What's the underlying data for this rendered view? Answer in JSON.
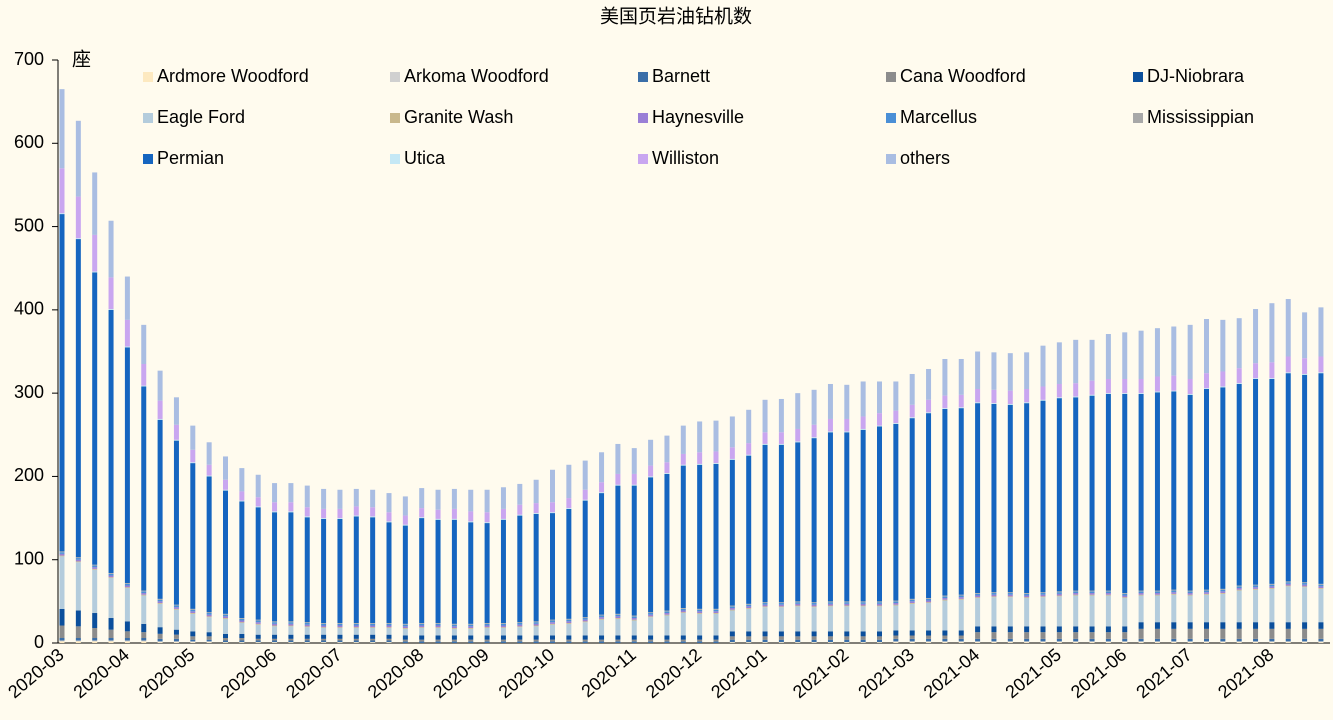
{
  "chart_data": {
    "type": "bar",
    "stacked": true,
    "title": "美国页岩油钻机数",
    "y_label": "座",
    "ylim": [
      0,
      700
    ],
    "yticks": [
      0,
      100,
      200,
      300,
      400,
      500,
      600,
      700
    ],
    "grid": false,
    "legend": "top",
    "categories": [
      "2020-03",
      null,
      null,
      null,
      "2020-04",
      null,
      null,
      null,
      "2020-05",
      null,
      null,
      null,
      null,
      "2020-06",
      null,
      null,
      null,
      "2020-07",
      null,
      null,
      null,
      null,
      "2020-08",
      null,
      null,
      null,
      "2020-09",
      null,
      null,
      null,
      "2020-10",
      null,
      null,
      null,
      null,
      "2020-11",
      null,
      null,
      null,
      "2020-12",
      null,
      null,
      null,
      "2021-01",
      null,
      null,
      null,
      null,
      "2021-02",
      null,
      null,
      null,
      "2021-03",
      null,
      null,
      null,
      "2021-04",
      null,
      null,
      null,
      null,
      "2021-05",
      null,
      null,
      null,
      "2021-06",
      null,
      null,
      null,
      "2021-07",
      null,
      null,
      null,
      null,
      "2021-08",
      null,
      null,
      null
    ],
    "series": [
      {
        "name": "Ardmore Woodford",
        "color": "#fde9c0",
        "values": [
          2,
          2,
          2,
          2,
          2,
          2,
          1,
          1,
          1,
          1,
          1,
          1,
          1,
          1,
          1,
          1,
          1,
          1,
          1,
          1,
          1,
          0,
          0,
          0,
          0,
          0,
          0,
          0,
          0,
          0,
          0,
          0,
          0,
          0,
          0,
          0,
          0,
          0,
          0,
          0,
          0,
          1,
          1,
          1,
          1,
          1,
          1,
          1,
          1,
          1,
          1,
          1,
          1,
          1,
          1,
          1,
          1,
          1,
          1,
          1,
          1,
          1,
          1,
          1,
          1,
          1,
          1,
          1,
          1,
          1,
          1,
          1,
          1,
          1,
          1,
          1,
          1,
          1
        ]
      },
      {
        "name": "Arkoma Woodford",
        "color": "#d0d0d0",
        "values": [
          1,
          1,
          1,
          1,
          1,
          1,
          1,
          1,
          1,
          1,
          0,
          0,
          0,
          0,
          0,
          0,
          0,
          0,
          0,
          0,
          0,
          0,
          0,
          0,
          0,
          0,
          0,
          0,
          0,
          0,
          0,
          0,
          0,
          0,
          0,
          0,
          0,
          0,
          0,
          0,
          0,
          0,
          0,
          0,
          0,
          0,
          0,
          0,
          0,
          0,
          0,
          1,
          1,
          1,
          1,
          1,
          1,
          1,
          1,
          1,
          1,
          1,
          1,
          1,
          1,
          1,
          1,
          1,
          1,
          1,
          1,
          1,
          1,
          1,
          1,
          1,
          1,
          1
        ]
      },
      {
        "name": "Barnett",
        "color": "#3a6ea8",
        "values": [
          3,
          3,
          3,
          3,
          3,
          3,
          3,
          3,
          2,
          2,
          2,
          2,
          2,
          2,
          2,
          2,
          2,
          2,
          2,
          2,
          2,
          2,
          2,
          2,
          2,
          2,
          2,
          2,
          2,
          2,
          2,
          2,
          2,
          2,
          2,
          2,
          2,
          2,
          2,
          2,
          2,
          3,
          3,
          3,
          3,
          3,
          3,
          3,
          3,
          3,
          3,
          3,
          3,
          3,
          3,
          3,
          3,
          3,
          3,
          3,
          3,
          3,
          3,
          3,
          3,
          3,
          3,
          3,
          3,
          3,
          3,
          3,
          3,
          3,
          3,
          3,
          3,
          3
        ]
      },
      {
        "name": "Cana Woodford",
        "color": "#8c8c8c",
        "values": [
          15,
          14,
          12,
          10,
          8,
          7,
          6,
          5,
          4,
          4,
          3,
          3,
          2,
          2,
          2,
          2,
          2,
          2,
          2,
          2,
          2,
          2,
          2,
          2,
          2,
          2,
          2,
          2,
          2,
          2,
          2,
          2,
          2,
          2,
          2,
          2,
          2,
          2,
          2,
          2,
          2,
          4,
          4,
          4,
          4,
          4,
          4,
          4,
          4,
          4,
          4,
          4,
          4,
          4,
          4,
          4,
          8,
          8,
          8,
          8,
          8,
          8,
          8,
          8,
          8,
          8,
          12,
          12,
          12,
          12,
          12,
          12,
          12,
          12,
          12,
          12,
          12,
          12
        ]
      },
      {
        "name": "DJ-Niobrara",
        "color": "#0b4f9c",
        "values": [
          20,
          19,
          18,
          14,
          12,
          10,
          8,
          6,
          6,
          5,
          5,
          5,
          5,
          5,
          5,
          5,
          5,
          5,
          5,
          5,
          5,
          5,
          5,
          5,
          5,
          5,
          5,
          5,
          5,
          5,
          5,
          5,
          5,
          5,
          5,
          5,
          5,
          5,
          5,
          5,
          5,
          6,
          6,
          6,
          6,
          6,
          6,
          6,
          6,
          6,
          6,
          6,
          6,
          6,
          6,
          6,
          7,
          7,
          7,
          7,
          7,
          7,
          7,
          7,
          7,
          7,
          8,
          8,
          8,
          8,
          8,
          8,
          8,
          8,
          8,
          8,
          8,
          8
        ]
      },
      {
        "name": "Eagle Ford",
        "color": "#b4ccdc",
        "values": [
          63,
          58,
          52,
          48,
          40,
          34,
          28,
          24,
          21,
          18,
          18,
          13,
          12,
          10,
          10,
          9,
          8,
          8,
          8,
          8,
          8,
          8,
          9,
          9,
          8,
          8,
          9,
          9,
          10,
          11,
          13,
          14,
          16,
          19,
          20,
          18,
          22,
          24,
          27,
          26,
          26,
          25,
          27,
          29,
          29,
          30,
          29,
          30,
          30,
          30,
          30,
          30,
          32,
          33,
          36,
          37,
          34,
          35,
          35,
          34,
          35,
          36,
          37,
          37,
          37,
          34,
          32,
          32,
          33,
          32,
          33,
          34,
          38,
          39,
          40,
          43,
          42,
          40
        ]
      },
      {
        "name": "Granite Wash",
        "color": "#c9b88c",
        "values": [
          1,
          1,
          1,
          1,
          1,
          1,
          1,
          1,
          1,
          1,
          1,
          1,
          1,
          1,
          1,
          1,
          1,
          1,
          1,
          1,
          1,
          1,
          1,
          1,
          1,
          1,
          1,
          1,
          1,
          1,
          1,
          1,
          1,
          1,
          1,
          1,
          1,
          1,
          1,
          1,
          1,
          1,
          1,
          1,
          1,
          1,
          1,
          1,
          1,
          1,
          1,
          1,
          1,
          1,
          1,
          1,
          1,
          1,
          1,
          1,
          1,
          1,
          1,
          1,
          1,
          1,
          1,
          1,
          1,
          1,
          1,
          1,
          1,
          1,
          1,
          1,
          1,
          1
        ]
      },
      {
        "name": "Haynesville",
        "color": "#9a7fd6",
        "values": [
          2,
          2,
          2,
          2,
          2,
          2,
          2,
          2,
          2,
          2,
          2,
          2,
          2,
          2,
          2,
          2,
          2,
          2,
          2,
          2,
          2,
          2,
          2,
          2,
          2,
          2,
          2,
          2,
          2,
          2,
          2,
          2,
          2,
          2,
          2,
          2,
          2,
          2,
          2,
          2,
          2,
          2,
          2,
          2,
          2,
          2,
          2,
          2,
          2,
          2,
          2,
          2,
          2,
          2,
          2,
          2,
          2,
          2,
          2,
          2,
          2,
          2,
          2,
          2,
          2,
          2,
          2,
          2,
          2,
          2,
          2,
          2,
          2,
          2,
          2,
          2,
          2,
          2
        ]
      },
      {
        "name": "Marcellus",
        "color": "#4a8fd6",
        "values": [
          2,
          2,
          2,
          2,
          2,
          2,
          2,
          2,
          2,
          2,
          2,
          2,
          2,
          2,
          2,
          2,
          2,
          2,
          2,
          2,
          2,
          2,
          2,
          2,
          2,
          2,
          2,
          2,
          2,
          2,
          2,
          2,
          2,
          2,
          2,
          2,
          2,
          2,
          2,
          2,
          2,
          2,
          2,
          2,
          2,
          2,
          2,
          2,
          2,
          2,
          2,
          2,
          2,
          2,
          2,
          2,
          2,
          2,
          2,
          2,
          2,
          2,
          2,
          2,
          2,
          2,
          2,
          2,
          2,
          2,
          2,
          2,
          2,
          2,
          2,
          2,
          2,
          2
        ]
      },
      {
        "name": "Mississippian",
        "color": "#a8a8a8",
        "values": [
          1,
          1,
          1,
          1,
          1,
          1,
          1,
          1,
          1,
          1,
          1,
          1,
          1,
          1,
          1,
          1,
          1,
          1,
          1,
          1,
          1,
          1,
          1,
          1,
          1,
          1,
          1,
          1,
          1,
          1,
          1,
          1,
          1,
          1,
          1,
          1,
          1,
          1,
          1,
          1,
          1,
          1,
          1,
          1,
          1,
          1,
          1,
          1,
          1,
          1,
          1,
          1,
          1,
          1,
          1,
          1,
          1,
          1,
          1,
          1,
          1,
          1,
          1,
          1,
          1,
          1,
          1,
          1,
          1,
          1,
          1,
          1,
          1,
          1,
          1,
          1,
          1,
          1
        ]
      },
      {
        "name": "Permian",
        "color": "#1565c0",
        "values": [
          405,
          382,
          351,
          316,
          283,
          245,
          215,
          197,
          175,
          163,
          148,
          140,
          135,
          131,
          131,
          126,
          125,
          125,
          128,
          127,
          121,
          118,
          126,
          124,
          125,
          122,
          120,
          124,
          128,
          129,
          128,
          132,
          140,
          146,
          154,
          156,
          162,
          164,
          171,
          173,
          174,
          175,
          178,
          189,
          189,
          191,
          197,
          203,
          203,
          206,
          210,
          212,
          217,
          222,
          224,
          224,
          228,
          226,
          225,
          228,
          230,
          232,
          232,
          234,
          236,
          239,
          236,
          238,
          238,
          235,
          241,
          242,
          242,
          247,
          246,
          250,
          249,
          253
        ]
      },
      {
        "name": "Utica",
        "color": "#c5e8f5",
        "values": [
          1,
          1,
          1,
          1,
          1,
          1,
          1,
          1,
          1,
          1,
          1,
          1,
          1,
          1,
          1,
          1,
          1,
          1,
          1,
          1,
          1,
          1,
          1,
          1,
          1,
          1,
          1,
          1,
          1,
          1,
          1,
          1,
          1,
          1,
          1,
          1,
          1,
          1,
          1,
          1,
          1,
          1,
          1,
          1,
          1,
          1,
          1,
          1,
          1,
          1,
          1,
          1,
          1,
          1,
          1,
          1,
          1,
          1,
          1,
          1,
          1,
          1,
          1,
          1,
          1,
          1,
          1,
          1,
          1,
          1,
          1,
          1,
          1,
          1,
          1,
          1,
          1,
          1
        ]
      },
      {
        "name": "Williston",
        "color": "#c9a6f0",
        "values": [
          54,
          50,
          44,
          38,
          32,
          26,
          22,
          18,
          15,
          13,
          12,
          11,
          11,
          11,
          11,
          11,
          11,
          11,
          11,
          11,
          11,
          11,
          11,
          11,
          12,
          12,
          12,
          12,
          12,
          12,
          12,
          12,
          12,
          12,
          13,
          13,
          13,
          13,
          13,
          14,
          14,
          14,
          14,
          14,
          14,
          15,
          15,
          15,
          15,
          15,
          15,
          15,
          15,
          15,
          15,
          15,
          16,
          16,
          16,
          16,
          16,
          16,
          16,
          17,
          17,
          17,
          17,
          18,
          18,
          18,
          18,
          18,
          18,
          18,
          19,
          19,
          19,
          19
        ]
      },
      {
        "name": "others",
        "color": "#a9bde2",
        "values": [
          95,
          91,
          75,
          68,
          52,
          47,
          36,
          33,
          29,
          27,
          28,
          28,
          27,
          23,
          23,
          26,
          24,
          23,
          21,
          21,
          23,
          23,
          24,
          24,
          24,
          26,
          27,
          26,
          25,
          28,
          39,
          40,
          35,
          36,
          36,
          31,
          31,
          32,
          34,
          37,
          37,
          37,
          40,
          39,
          40,
          43,
          42,
          42,
          41,
          42,
          38,
          35,
          37,
          37,
          44,
          43,
          45,
          45,
          45,
          44,
          49,
          50,
          52,
          49,
          54,
          56,
          58,
          58,
          59,
          65,
          65,
          62,
          60,
          65,
          71,
          69,
          55,
          59
        ]
      }
    ]
  }
}
